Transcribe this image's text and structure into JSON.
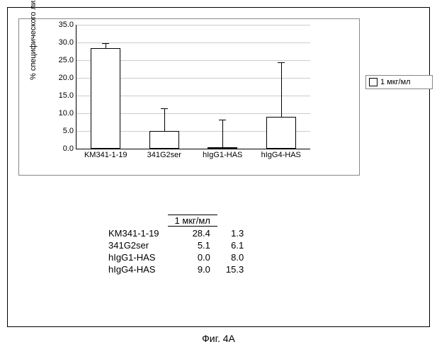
{
  "chart": {
    "type": "bar",
    "ylabel": "% специфического лизиса",
    "ylim": [
      0,
      35
    ],
    "ytick_step": 5,
    "yticks": [
      "0.0",
      "5.0",
      "10.0",
      "15.0",
      "20.0",
      "25.0",
      "30.0",
      "35.0"
    ],
    "categories": [
      "KM341-1-19",
      "341G2ser",
      "hIgG1-HAS",
      "hIgG4-HAS"
    ],
    "values": [
      28.4,
      5.1,
      0.0,
      9.0
    ],
    "errors": [
      1.3,
      6.1,
      8.0,
      15.3
    ],
    "bar_color": "#ffffff",
    "bar_border": "#000000",
    "grid_color": "#cccccc",
    "background_color": "#ffffff"
  },
  "legend": {
    "label": "1 мкг/мл"
  },
  "table": {
    "header": "1 мкг/мл",
    "rows": [
      {
        "name": "KM341-1-19",
        "v1": "28.4",
        "v2": "1.3"
      },
      {
        "name": "341G2ser",
        "v1": "5.1",
        "v2": "6.1"
      },
      {
        "name": "hIgG1-HAS",
        "v1": "0.0",
        "v2": "8.0"
      },
      {
        "name": "hIgG4-HAS",
        "v1": "9.0",
        "v2": "15.3"
      }
    ]
  },
  "caption": "Фиг. 4A"
}
